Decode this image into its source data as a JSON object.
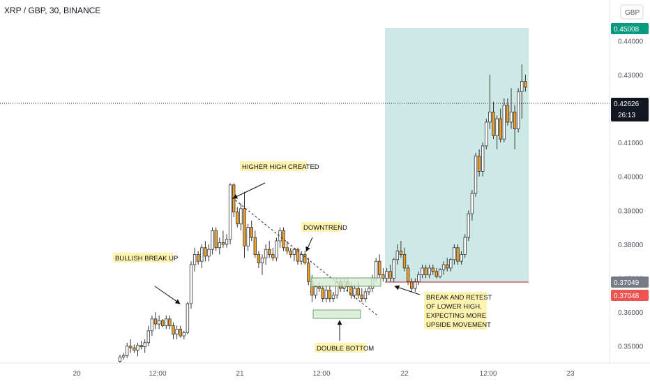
{
  "header": {
    "title": "XRP / GBP, 30, BINANCE",
    "currency_button": "GBP"
  },
  "colors": {
    "up": "#ffffff",
    "down": "#f0a126",
    "wick": "#333333",
    "target_zone": "#cde9e5",
    "stop_line": "#b71c1c",
    "entry_badge": "#787b86",
    "stop_badge": "#ef5350",
    "target_badge": "#089981",
    "last_price_badge": "#131722",
    "box_fill": "#d4ecd5",
    "box_stroke": "#6aa36d",
    "note_bg": "#fff3b0"
  },
  "badges": {
    "target": "0.45008",
    "entry": "0.37049",
    "stop": "0.37048",
    "last_price": "0.42626",
    "countdown": "26:13"
  },
  "annotations": {
    "higher_high": "HIGHER HIGH CREATED",
    "downtrend": "DOWNTREND",
    "bullish": "BULLISH BREAK UP",
    "double_bottom": "DOUBLE BOTTOM",
    "retest": [
      "BREAK AND RETEST",
      "OF LOWER HIGH.",
      "EXPECTING MORE",
      "UPSIDE MOVEMENT"
    ]
  },
  "chart_data": {
    "type": "candlestick",
    "symbol": "XRP / GBP",
    "interval": "30",
    "exchange": "BINANCE",
    "ylim": [
      0.345,
      0.452
    ],
    "y_ticks": [
      "0.35000",
      "0.36000",
      "0.37000",
      "0.38000",
      "0.39000",
      "0.40000",
      "0.41000",
      "0.42000",
      "0.43000",
      "0.44000"
    ],
    "x_ticks": [
      "20",
      "12:00",
      "21",
      "12:00",
      "22",
      "12:00",
      "23"
    ],
    "ohlc": [
      [
        0.3455,
        0.3475,
        0.345,
        0.3468
      ],
      [
        0.3468,
        0.348,
        0.346,
        0.3472
      ],
      [
        0.3472,
        0.351,
        0.3465,
        0.35
      ],
      [
        0.35,
        0.352,
        0.348,
        0.3495
      ],
      [
        0.3495,
        0.3505,
        0.348,
        0.3488
      ],
      [
        0.3488,
        0.351,
        0.347,
        0.3502
      ],
      [
        0.3502,
        0.3515,
        0.349,
        0.3498
      ],
      [
        0.3498,
        0.352,
        0.348,
        0.351
      ],
      [
        0.351,
        0.356,
        0.35,
        0.3545
      ],
      [
        0.3545,
        0.359,
        0.353,
        0.358
      ],
      [
        0.358,
        0.36,
        0.355,
        0.3565
      ],
      [
        0.3565,
        0.359,
        0.355,
        0.3575
      ],
      [
        0.3575,
        0.358,
        0.3555,
        0.356
      ],
      [
        0.356,
        0.359,
        0.355,
        0.358
      ],
      [
        0.358,
        0.359,
        0.355,
        0.356
      ],
      [
        0.356,
        0.357,
        0.352,
        0.3535
      ],
      [
        0.3535,
        0.356,
        0.352,
        0.355
      ],
      [
        0.355,
        0.356,
        0.3525,
        0.353
      ],
      [
        0.353,
        0.3545,
        0.352,
        0.354
      ],
      [
        0.354,
        0.363,
        0.3535,
        0.3625
      ],
      [
        0.3625,
        0.375,
        0.361,
        0.374
      ],
      [
        0.374,
        0.379,
        0.372,
        0.377
      ],
      [
        0.377,
        0.378,
        0.374,
        0.375
      ],
      [
        0.375,
        0.38,
        0.373,
        0.379
      ],
      [
        0.379,
        0.381,
        0.375,
        0.3765
      ],
      [
        0.3765,
        0.38,
        0.375,
        0.3785
      ],
      [
        0.3785,
        0.385,
        0.377,
        0.384
      ],
      [
        0.384,
        0.385,
        0.378,
        0.379
      ],
      [
        0.379,
        0.382,
        0.377,
        0.3805
      ],
      [
        0.3805,
        0.384,
        0.379,
        0.38
      ],
      [
        0.38,
        0.383,
        0.379,
        0.3815
      ],
      [
        0.3815,
        0.398,
        0.38,
        0.3975
      ],
      [
        0.3975,
        0.398,
        0.388,
        0.3895
      ],
      [
        0.3895,
        0.391,
        0.385,
        0.386
      ],
      [
        0.386,
        0.392,
        0.384,
        0.3905
      ],
      [
        0.3905,
        0.3955,
        0.376,
        0.3795
      ],
      [
        0.3795,
        0.386,
        0.378,
        0.385
      ],
      [
        0.385,
        0.387,
        0.381,
        0.382
      ],
      [
        0.382,
        0.384,
        0.376,
        0.377
      ],
      [
        0.377,
        0.378,
        0.373,
        0.3745
      ],
      [
        0.3745,
        0.377,
        0.371,
        0.376
      ],
      [
        0.376,
        0.38,
        0.374,
        0.3785
      ],
      [
        0.3785,
        0.381,
        0.376,
        0.377
      ],
      [
        0.377,
        0.379,
        0.375,
        0.376
      ],
      [
        0.376,
        0.382,
        0.375,
        0.381
      ],
      [
        0.381,
        0.385,
        0.379,
        0.384
      ],
      [
        0.384,
        0.385,
        0.378,
        0.379
      ],
      [
        0.379,
        0.381,
        0.377,
        0.378
      ],
      [
        0.378,
        0.379,
        0.376,
        0.377
      ],
      [
        0.377,
        0.379,
        0.375,
        0.3785
      ],
      [
        0.3785,
        0.379,
        0.374,
        0.375
      ],
      [
        0.375,
        0.378,
        0.374,
        0.377
      ],
      [
        0.377,
        0.378,
        0.374,
        0.3745
      ],
      [
        0.3745,
        0.376,
        0.368,
        0.369
      ],
      [
        0.369,
        0.371,
        0.363,
        0.365
      ],
      [
        0.365,
        0.368,
        0.364,
        0.3675
      ],
      [
        0.3675,
        0.369,
        0.366,
        0.367
      ],
      [
        0.367,
        0.368,
        0.363,
        0.364
      ],
      [
        0.364,
        0.368,
        0.363,
        0.3665
      ],
      [
        0.3665,
        0.368,
        0.363,
        0.364
      ],
      [
        0.364,
        0.366,
        0.363,
        0.365
      ],
      [
        0.365,
        0.37,
        0.364,
        0.369
      ],
      [
        0.369,
        0.37,
        0.366,
        0.367
      ],
      [
        0.367,
        0.37,
        0.366,
        0.369
      ],
      [
        0.369,
        0.37,
        0.366,
        0.3675
      ],
      [
        0.3675,
        0.369,
        0.364,
        0.365
      ],
      [
        0.365,
        0.368,
        0.364,
        0.367
      ],
      [
        0.367,
        0.369,
        0.364,
        0.365
      ],
      [
        0.365,
        0.367,
        0.363,
        0.364
      ],
      [
        0.364,
        0.367,
        0.363,
        0.366
      ],
      [
        0.366,
        0.368,
        0.365,
        0.367
      ],
      [
        0.367,
        0.371,
        0.366,
        0.37
      ],
      [
        0.37,
        0.376,
        0.369,
        0.375
      ],
      [
        0.375,
        0.377,
        0.37,
        0.371
      ],
      [
        0.371,
        0.373,
        0.369,
        0.37
      ],
      [
        0.37,
        0.373,
        0.369,
        0.372
      ],
      [
        0.372,
        0.374,
        0.369,
        0.37
      ],
      [
        0.37,
        0.376,
        0.369,
        0.3755
      ],
      [
        0.3755,
        0.38,
        0.374,
        0.378
      ],
      [
        0.378,
        0.381,
        0.376,
        0.377
      ],
      [
        0.377,
        0.379,
        0.372,
        0.373
      ],
      [
        0.373,
        0.374,
        0.368,
        0.369
      ],
      [
        0.369,
        0.37,
        0.366,
        0.367
      ],
      [
        0.367,
        0.37,
        0.366,
        0.369
      ],
      [
        0.369,
        0.372,
        0.368,
        0.371
      ],
      [
        0.371,
        0.374,
        0.37,
        0.373
      ],
      [
        0.373,
        0.374,
        0.37,
        0.371
      ],
      [
        0.371,
        0.374,
        0.37,
        0.373
      ],
      [
        0.373,
        0.374,
        0.371,
        0.372
      ],
      [
        0.372,
        0.373,
        0.37,
        0.3705
      ],
      [
        0.3705,
        0.373,
        0.37,
        0.3725
      ],
      [
        0.3725,
        0.375,
        0.371,
        0.374
      ],
      [
        0.374,
        0.376,
        0.372,
        0.373
      ],
      [
        0.373,
        0.376,
        0.372,
        0.3755
      ],
      [
        0.3755,
        0.38,
        0.374,
        0.379
      ],
      [
        0.379,
        0.38,
        0.374,
        0.375
      ],
      [
        0.375,
        0.378,
        0.374,
        0.377
      ],
      [
        0.377,
        0.383,
        0.376,
        0.382
      ],
      [
        0.382,
        0.39,
        0.381,
        0.389
      ],
      [
        0.389,
        0.396,
        0.387,
        0.395
      ],
      [
        0.395,
        0.407,
        0.394,
        0.406
      ],
      [
        0.406,
        0.408,
        0.4,
        0.4015
      ],
      [
        0.4015,
        0.41,
        0.4,
        0.409
      ],
      [
        0.409,
        0.417,
        0.408,
        0.416
      ],
      [
        0.416,
        0.43,
        0.414,
        0.419
      ],
      [
        0.419,
        0.422,
        0.411,
        0.412
      ],
      [
        0.412,
        0.418,
        0.408,
        0.417
      ],
      [
        0.417,
        0.42,
        0.41,
        0.411
      ],
      [
        0.411,
        0.423,
        0.41,
        0.421
      ],
      [
        0.421,
        0.423,
        0.415,
        0.416
      ],
      [
        0.416,
        0.426,
        0.414,
        0.419
      ],
      [
        0.419,
        0.421,
        0.408,
        0.414
      ],
      [
        0.414,
        0.426,
        0.413,
        0.425
      ],
      [
        0.425,
        0.433,
        0.417,
        0.428
      ],
      [
        0.428,
        0.43,
        0.425,
        0.4263
      ]
    ],
    "target_zone": {
      "from": 0.37049,
      "to": 0.45008
    },
    "last_price": 0.42626,
    "annotation_texts": [
      "HIGHER HIGH CREATED",
      "DOWNTREND",
      "BULLISH BREAK UP",
      "DOUBLE BOTTOM",
      "BREAK AND RETEST OF LOWER HIGH. EXPECTING MORE UPSIDE MOVEMENT"
    ]
  }
}
